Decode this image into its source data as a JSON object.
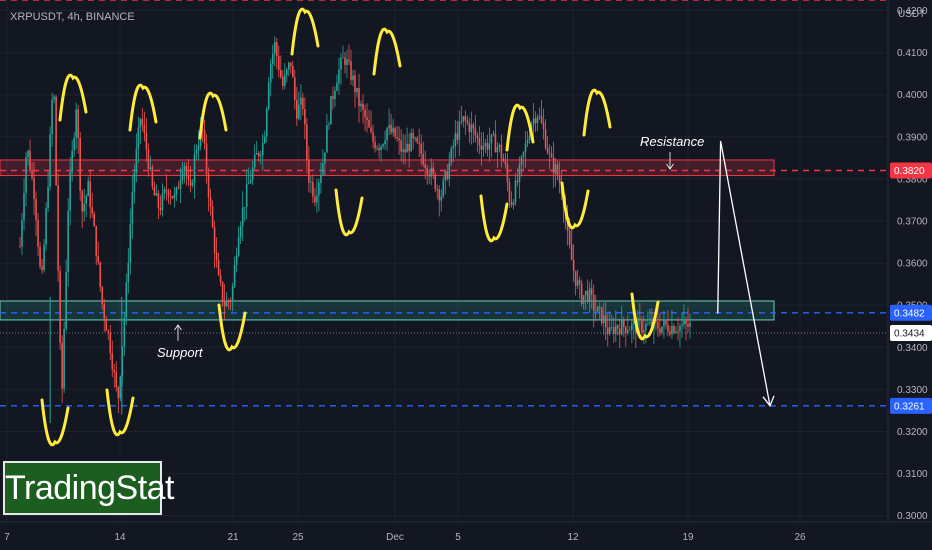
{
  "header": {
    "symbol": "XRPUSDT, 4h, BINANCE"
  },
  "axis": {
    "currency": "USDT"
  },
  "annotations": {
    "resistance": "Resistance",
    "support": "Support"
  },
  "branding": {
    "logo_text": "TradingStat"
  },
  "colors": {
    "background": "#131722",
    "up_candle": "#26a69a",
    "down_candle": "#ef5350",
    "resistance_line": "#f23645",
    "support_line": "#2962ff",
    "support_zone_border": "#6fd3b3",
    "wave_marker": "#ffeb3b",
    "projection_arrow": "#ffffff"
  },
  "icons": {
    "wave_marker": "yellow-curve-icon",
    "projection": "arrow-down-icon"
  },
  "chart_data": {
    "type": "candlestick",
    "ylim": [
      0.2985,
      0.4225
    ],
    "yticks": [
      "0.3000",
      "0.3100",
      "0.3200",
      "0.3300",
      "0.3400",
      "0.3500",
      "0.3600",
      "0.3700",
      "0.3800",
      "0.3900",
      "0.4000",
      "0.4100",
      "0.4200"
    ],
    "xticks": [
      "7",
      "14",
      "21",
      "25",
      "Dec",
      "5",
      "12",
      "19",
      "26"
    ],
    "price_tags": [
      {
        "value": "0.3820",
        "style": "red"
      },
      {
        "value": "0.3482",
        "style": "blue"
      },
      {
        "value": "0.3434",
        "style": "white"
      },
      {
        "value": "0.3261",
        "style": "blue"
      }
    ],
    "horizontal_lines": [
      {
        "price": 0.4225,
        "style": "red-dashed"
      },
      {
        "price": 0.382,
        "style": "red-dashed"
      },
      {
        "price": 0.3482,
        "style": "blue-dashed"
      },
      {
        "price": 0.3261,
        "style": "blue-dashed"
      },
      {
        "price": 0.3434,
        "style": "dotted"
      }
    ],
    "zones": [
      {
        "name": "resistance",
        "top": 0.3845,
        "bottom": 0.3808
      },
      {
        "name": "support",
        "top": 0.351,
        "bottom": 0.3465
      }
    ],
    "projection": {
      "path": [
        [
          0.347,
          0.348
        ],
        [
          0.3825,
          0.389
        ],
        [
          1.0,
          0.3261
        ]
      ]
    },
    "price_path": [
      [
        0.0,
        0.364
      ],
      [
        0.01,
        0.388
      ],
      [
        0.022,
        0.376
      ],
      [
        0.032,
        0.354
      ],
      [
        0.042,
        0.38
      ],
      [
        0.05,
        0.405
      ],
      [
        0.058,
        0.351
      ],
      [
        0.062,
        0.326
      ],
      [
        0.072,
        0.374
      ],
      [
        0.084,
        0.398
      ],
      [
        0.092,
        0.372
      ],
      [
        0.102,
        0.378
      ],
      [
        0.112,
        0.366
      ],
      [
        0.122,
        0.351
      ],
      [
        0.134,
        0.341
      ],
      [
        0.146,
        0.327
      ],
      [
        0.158,
        0.352
      ],
      [
        0.168,
        0.378
      ],
      [
        0.18,
        0.395
      ],
      [
        0.19,
        0.386
      ],
      [
        0.198,
        0.377
      ],
      [
        0.208,
        0.373
      ],
      [
        0.22,
        0.378
      ],
      [
        0.232,
        0.375
      ],
      [
        0.244,
        0.385
      ],
      [
        0.254,
        0.376
      ],
      [
        0.262,
        0.387
      ],
      [
        0.272,
        0.392
      ],
      [
        0.284,
        0.373
      ],
      [
        0.296,
        0.356
      ],
      [
        0.306,
        0.35
      ],
      [
        0.316,
        0.352
      ],
      [
        0.326,
        0.368
      ],
      [
        0.34,
        0.378
      ],
      [
        0.352,
        0.385
      ],
      [
        0.364,
        0.389
      ],
      [
        0.372,
        0.406
      ],
      [
        0.38,
        0.412
      ],
      [
        0.392,
        0.402
      ],
      [
        0.404,
        0.408
      ],
      [
        0.412,
        0.396
      ],
      [
        0.422,
        0.398
      ],
      [
        0.43,
        0.381
      ],
      [
        0.44,
        0.376
      ],
      [
        0.452,
        0.384
      ],
      [
        0.462,
        0.396
      ],
      [
        0.472,
        0.404
      ],
      [
        0.484,
        0.409
      ],
      [
        0.496,
        0.404
      ],
      [
        0.506,
        0.398
      ],
      [
        0.516,
        0.394
      ],
      [
        0.526,
        0.389
      ],
      [
        0.538,
        0.388
      ],
      [
        0.548,
        0.392
      ],
      [
        0.56,
        0.39
      ],
      [
        0.572,
        0.386
      ],
      [
        0.584,
        0.389
      ],
      [
        0.596,
        0.387
      ],
      [
        0.608,
        0.383
      ],
      [
        0.62,
        0.379
      ],
      [
        0.628,
        0.376
      ],
      [
        0.64,
        0.383
      ],
      [
        0.65,
        0.39
      ],
      [
        0.662,
        0.394
      ],
      [
        0.674,
        0.392
      ],
      [
        0.684,
        0.389
      ],
      [
        0.694,
        0.388
      ],
      [
        0.706,
        0.389
      ],
      [
        0.716,
        0.387
      ],
      [
        0.724,
        0.383
      ],
      [
        0.732,
        0.374
      ],
      [
        0.742,
        0.379
      ],
      [
        0.752,
        0.386
      ],
      [
        0.762,
        0.393
      ],
      [
        0.772,
        0.396
      ],
      [
        0.782,
        0.391
      ],
      [
        0.792,
        0.384
      ],
      [
        0.8,
        0.382
      ],
      [
        0.81,
        0.377
      ],
      [
        0.818,
        0.365
      ],
      [
        0.828,
        0.357
      ],
      [
        0.838,
        0.352
      ],
      [
        0.848,
        0.353
      ],
      [
        0.858,
        0.349
      ],
      [
        0.87,
        0.347
      ],
      [
        0.88,
        0.343
      ],
      [
        0.888,
        0.345
      ]
    ]
  }
}
